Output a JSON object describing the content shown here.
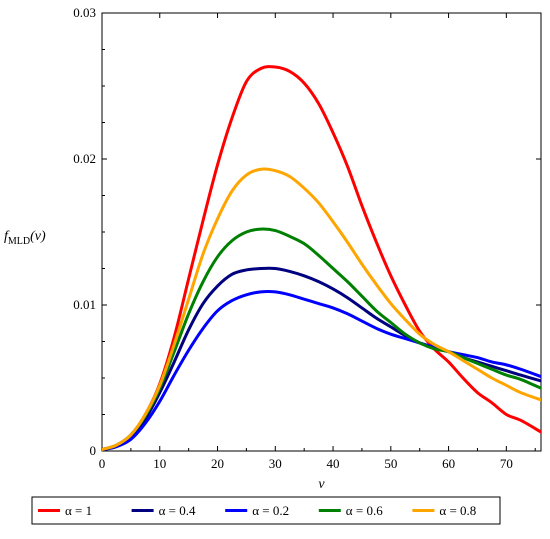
{
  "chart_data": {
    "type": "line",
    "title": "",
    "xlabel": "ν",
    "ylabel_main": "f",
    "ylabel_sub": "MLD",
    "ylabel_arg": "(ν)",
    "xlim": [
      0,
      76
    ],
    "ylim": [
      0,
      0.03
    ],
    "x_ticks": [
      0,
      10,
      20,
      30,
      40,
      50,
      60,
      70
    ],
    "x_tick_labels": [
      "0",
      "10",
      "20",
      "30",
      "40",
      "50",
      "60",
      "70"
    ],
    "y_ticks": [
      0,
      0.01,
      0.02,
      0.03
    ],
    "y_tick_labels": [
      "0",
      "0.01",
      "0.02",
      "0.03"
    ],
    "grid": false,
    "legend_position": "bottom",
    "x": [
      0,
      2.5,
      5,
      7.5,
      10,
      12.5,
      15,
      17.5,
      20,
      22.5,
      25,
      27.5,
      30,
      32.5,
      35,
      37.5,
      40,
      42.5,
      45,
      47.5,
      50,
      52.5,
      55,
      57.5,
      60,
      62.5,
      65,
      67.5,
      70,
      72.5,
      76
    ],
    "series": [
      {
        "name": "α = 1",
        "color": "#ff0000",
        "values": [
          0.0001,
          0.0004,
          0.0011,
          0.0025,
          0.0046,
          0.0078,
          0.0118,
          0.0158,
          0.0196,
          0.0228,
          0.0253,
          0.0262,
          0.0263,
          0.026,
          0.0252,
          0.0238,
          0.0218,
          0.0195,
          0.0168,
          0.0143,
          0.012,
          0.01,
          0.0082,
          0.007,
          0.0061,
          0.005,
          0.004,
          0.0033,
          0.0025,
          0.0021,
          0.0013
        ]
      },
      {
        "name": "α = 0.4",
        "color": "#000080",
        "values": [
          0.0001,
          0.0003,
          0.001,
          0.0022,
          0.004,
          0.0061,
          0.0083,
          0.0101,
          0.0113,
          0.0121,
          0.0124,
          0.0125,
          0.0125,
          0.0123,
          0.012,
          0.0116,
          0.0111,
          0.0105,
          0.0098,
          0.0091,
          0.0085,
          0.0079,
          0.0074,
          0.0071,
          0.0068,
          0.0064,
          0.0061,
          0.0058,
          0.0055,
          0.0052,
          0.0048
        ]
      },
      {
        "name": "α = 0.2",
        "color": "#0000ff",
        "values": [
          0.0001,
          0.0003,
          0.0008,
          0.0019,
          0.0034,
          0.0052,
          0.0069,
          0.0084,
          0.0096,
          0.0103,
          0.0107,
          0.0109,
          0.0109,
          0.0107,
          0.0104,
          0.0101,
          0.0098,
          0.0094,
          0.0089,
          0.0084,
          0.008,
          0.0077,
          0.0074,
          0.0071,
          0.0068,
          0.0066,
          0.0064,
          0.0061,
          0.0059,
          0.0056,
          0.0051
        ]
      },
      {
        "name": "α = 0.6",
        "color": "#008000",
        "values": [
          0.0001,
          0.0004,
          0.0011,
          0.0024,
          0.0043,
          0.0068,
          0.0094,
          0.0116,
          0.0133,
          0.0144,
          0.015,
          0.0152,
          0.0151,
          0.0147,
          0.0142,
          0.0134,
          0.0125,
          0.0116,
          0.0106,
          0.0096,
          0.0088,
          0.008,
          0.0074,
          0.007,
          0.0068,
          0.0064,
          0.006,
          0.0056,
          0.0052,
          0.0049,
          0.0043
        ]
      },
      {
        "name": "α = 0.8",
        "color": "#ffa500",
        "values": [
          0.0001,
          0.0004,
          0.0011,
          0.0025,
          0.0045,
          0.0073,
          0.0104,
          0.0135,
          0.0159,
          0.0178,
          0.0189,
          0.0193,
          0.0192,
          0.0188,
          0.018,
          0.017,
          0.0157,
          0.0143,
          0.0128,
          0.0114,
          0.0101,
          0.009,
          0.008,
          0.0073,
          0.0068,
          0.0062,
          0.0056,
          0.005,
          0.0045,
          0.004,
          0.0035
        ]
      }
    ]
  }
}
